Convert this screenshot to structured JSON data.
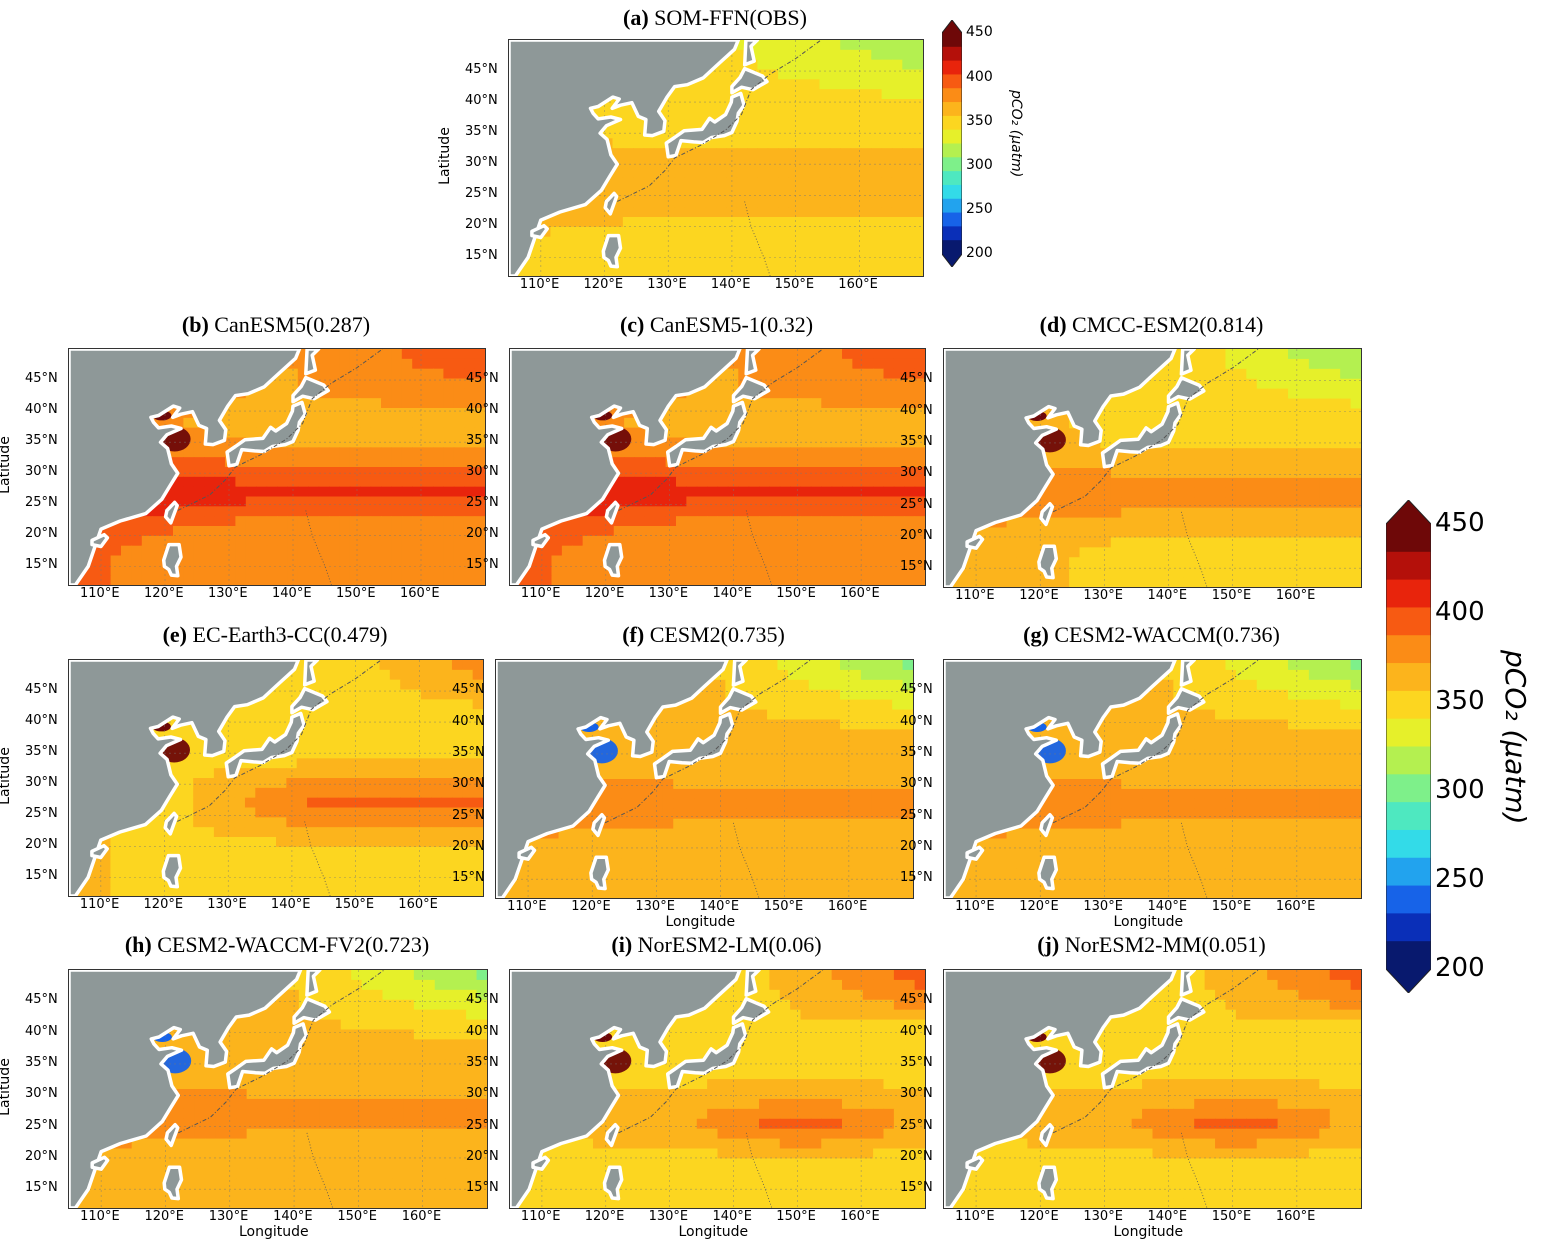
{
  "figure": {
    "panels": [
      {
        "id": "a",
        "letter": "(a)",
        "model": "SOM-FFN(OBS)",
        "regime": "obs",
        "show_ylabel": true,
        "show_xlabel": false
      },
      {
        "id": "b",
        "letter": "(b)",
        "model": "CanESM5(0.287)",
        "regime": "high",
        "show_ylabel": true,
        "show_xlabel": false
      },
      {
        "id": "c",
        "letter": "(c)",
        "model": "CanESM5-1(0.32)",
        "regime": "high",
        "show_ylabel": false,
        "show_xlabel": false
      },
      {
        "id": "d",
        "letter": "(d)",
        "model": "CMCC-ESM2(0.814)",
        "regime": "mid",
        "show_ylabel": false,
        "show_xlabel": false
      },
      {
        "id": "e",
        "letter": "(e)",
        "model": "EC-Earth3-CC(0.479)",
        "regime": "midhigh",
        "show_ylabel": true,
        "show_xlabel": false
      },
      {
        "id": "f",
        "letter": "(f)",
        "model": "CESM2(0.735)",
        "regime": "cesm",
        "show_ylabel": false,
        "show_xlabel": true
      },
      {
        "id": "g",
        "letter": "(g)",
        "model": "CESM2-WACCM(0.736)",
        "regime": "cesm",
        "show_ylabel": false,
        "show_xlabel": true
      },
      {
        "id": "h",
        "letter": "(h)",
        "model": "CESM2-WACCM-FV2(0.723)",
        "regime": "cesm",
        "show_ylabel": true,
        "show_xlabel": true
      },
      {
        "id": "i",
        "letter": "(i)",
        "model": "NorESM2-LM(0.06)",
        "regime": "nor",
        "show_ylabel": false,
        "show_xlabel": true
      },
      {
        "id": "j",
        "letter": "(j)",
        "model": "NorESM2-MM(0.051)",
        "regime": "nor",
        "show_ylabel": false,
        "show_xlabel": true
      }
    ],
    "lat_ticks": [
      "15°N",
      "20°N",
      "25°N",
      "30°N",
      "35°N",
      "40°N",
      "45°N"
    ],
    "lon_ticks": [
      "110°E",
      "120°E",
      "130°E",
      "140°E",
      "150°E",
      "160°E"
    ],
    "lat_values": [
      15,
      20,
      25,
      30,
      35,
      40,
      45
    ],
    "lon_values": [
      110,
      120,
      130,
      140,
      150,
      160
    ],
    "extent": {
      "lon": [
        105,
        170
      ],
      "lat": [
        12,
        50
      ]
    },
    "ylabel": "Latitude",
    "xlabel": "Longitude"
  },
  "colorbar": {
    "label": "pCO₂ (μatm)",
    "ticks": [
      200,
      250,
      300,
      350,
      400,
      450
    ],
    "tick_labels": [
      "200",
      "250",
      "300",
      "350",
      "400",
      "450"
    ],
    "range": [
      200,
      450
    ],
    "extend": "both",
    "colors": [
      "#08196e",
      "#0a2fb8",
      "#1763e8",
      "#22a3ee",
      "#33dbe8",
      "#4ee8c0",
      "#7ef08a",
      "#b4f050",
      "#e6f02a",
      "#fcd620",
      "#fcb41c",
      "#fb8c16",
      "#f75a12",
      "#e8240c",
      "#b4100a",
      "#6e0808"
    ]
  },
  "land_color": "#8e9898",
  "coast_color": "#ffffff"
}
